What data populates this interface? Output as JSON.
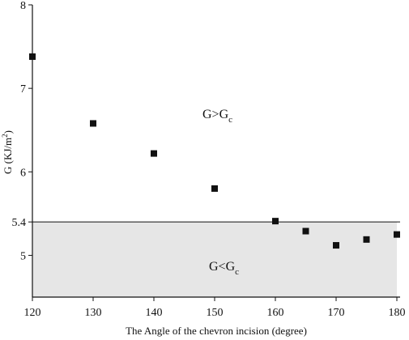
{
  "chart_data": {
    "type": "scatter",
    "title": "",
    "xlabel": "The Angle of the chevron incision (degree)",
    "ylabel_main": "G (KJ/m",
    "ylabel_sup": "2",
    "ylabel_close": ")",
    "xlim": [
      120,
      180
    ],
    "ylim": [
      4.5,
      8
    ],
    "x_ticks": [
      120,
      130,
      140,
      150,
      160,
      170,
      180
    ],
    "y_ticks": [
      5,
      5.4,
      6,
      7,
      8
    ],
    "threshold": 5.4,
    "threshold_fill": "#e6e6e6",
    "marker_color": "#111111",
    "marker_shape": "square",
    "region_above": {
      "main": "G>G",
      "sub": "c"
    },
    "region_below": {
      "main": "G<G",
      "sub": "c"
    },
    "x": [
      120,
      130,
      140,
      150,
      160,
      165,
      170,
      175,
      180
    ],
    "y": [
      7.38,
      6.58,
      6.22,
      5.8,
      5.41,
      5.29,
      5.12,
      5.19,
      5.25
    ]
  }
}
